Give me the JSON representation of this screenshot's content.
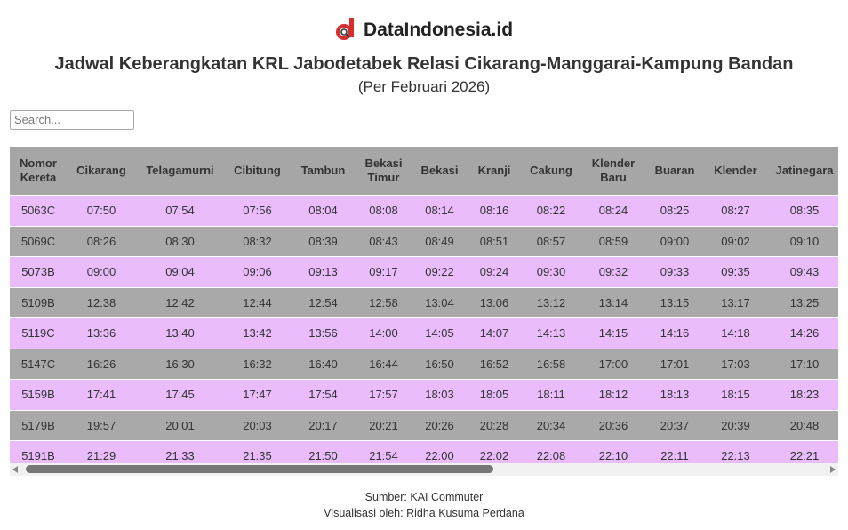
{
  "header": {
    "brand": "DataIndonesia.id",
    "title": "Jadwal Keberangkatan KRL Jabodetabek Relasi Cikarang-Manggarai-Kampung Bandan",
    "subtitle": "(Per Februari 2026)"
  },
  "search": {
    "placeholder": "Search..."
  },
  "table": {
    "columns": [
      "Nomor Kereta",
      "Cikarang",
      "Telagamurni",
      "Cibitung",
      "Tambun",
      "Bekasi Timur",
      "Bekasi",
      "Kranji",
      "Cakung",
      "Klender Baru",
      "Buaran",
      "Klender",
      "Jatinegara"
    ],
    "rows": [
      [
        "5063C",
        "07:50",
        "07:54",
        "07:56",
        "08:04",
        "08:08",
        "08:14",
        "08:16",
        "08:22",
        "08:24",
        "08:25",
        "08:27",
        "08:35"
      ],
      [
        "5069C",
        "08:26",
        "08:30",
        "08:32",
        "08:39",
        "08:43",
        "08:49",
        "08:51",
        "08:57",
        "08:59",
        "09:00",
        "09:02",
        "09:10"
      ],
      [
        "5073B",
        "09:00",
        "09:04",
        "09:06",
        "09:13",
        "09:17",
        "09:22",
        "09:24",
        "09:30",
        "09:32",
        "09:33",
        "09:35",
        "09:43"
      ],
      [
        "5109B",
        "12:38",
        "12:42",
        "12:44",
        "12:54",
        "12:58",
        "13:04",
        "13:06",
        "13:12",
        "13:14",
        "13:15",
        "13:17",
        "13:25"
      ],
      [
        "5119C",
        "13:36",
        "13:40",
        "13:42",
        "13:56",
        "14:00",
        "14:05",
        "14:07",
        "14:13",
        "14:15",
        "14:16",
        "14:18",
        "14:26"
      ],
      [
        "5147C",
        "16:26",
        "16:30",
        "16:32",
        "16:40",
        "16:44",
        "16:50",
        "16:52",
        "16:58",
        "17:00",
        "17:01",
        "17:03",
        "17:10"
      ],
      [
        "5159B",
        "17:41",
        "17:45",
        "17:47",
        "17:54",
        "17:57",
        "18:03",
        "18:05",
        "18:11",
        "18:12",
        "18:13",
        "18:15",
        "18:23"
      ],
      [
        "5179B",
        "19:57",
        "20:01",
        "20:03",
        "20:17",
        "20:21",
        "20:26",
        "20:28",
        "20:34",
        "20:36",
        "20:37",
        "20:39",
        "20:48"
      ],
      [
        "5191B",
        "21:29",
        "21:33",
        "21:35",
        "21:50",
        "21:54",
        "22:00",
        "22:02",
        "22:08",
        "22:10",
        "22:11",
        "22:13",
        "22:21"
      ]
    ]
  },
  "footer": {
    "source": "Sumber: KAI Commuter",
    "credit": "Visualisasi oleh: Ridha Kusuma Perdana"
  }
}
